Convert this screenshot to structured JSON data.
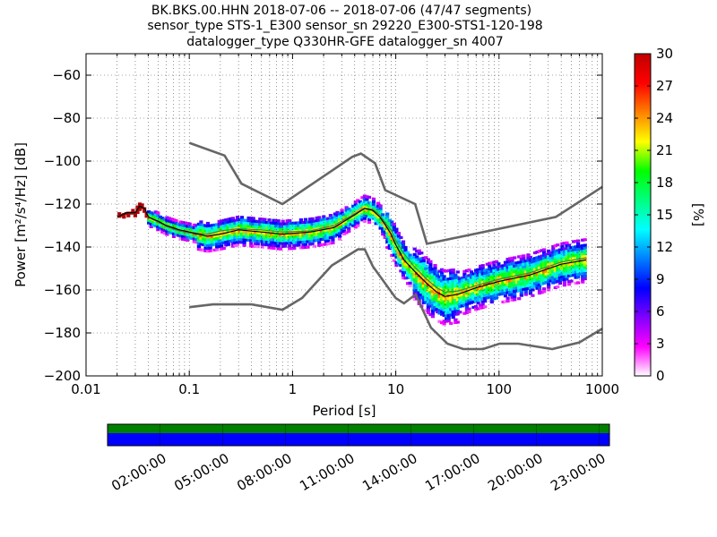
{
  "chart_data": {
    "type": "heatmap",
    "title_lines": [
      "BK.BKS.00.HHN   2018-07-06 -- 2018-07-06  (47/47 segments)",
      "sensor_type STS-1_E300 sensor_sn 29220_E300-STS1-120-198",
      "datalogger_type Q330HR-GFE datalogger_sn 4007"
    ],
    "xlabel": "Period [s]",
    "ylabel": "Power [m²/s⁴/Hz] [dB]",
    "x_scale": "log",
    "xlim": [
      0.01,
      1000
    ],
    "ylim": [
      -200,
      -50
    ],
    "x_ticks": [
      {
        "value": 0.01,
        "label": "0.01"
      },
      {
        "value": 0.1,
        "label": "0.1"
      },
      {
        "value": 1,
        "label": "1"
      },
      {
        "value": 10,
        "label": "10"
      },
      {
        "value": 100,
        "label": "100"
      },
      {
        "value": 1000,
        "label": "1000"
      }
    ],
    "y_ticks": [
      {
        "value": -60,
        "label": "−60"
      },
      {
        "value": -80,
        "label": "−80"
      },
      {
        "value": -100,
        "label": "−100"
      },
      {
        "value": -120,
        "label": "−120"
      },
      {
        "value": -140,
        "label": "−140"
      },
      {
        "value": -160,
        "label": "−160"
      },
      {
        "value": -180,
        "label": "−180"
      },
      {
        "value": -200,
        "label": "−200"
      }
    ],
    "grid": true,
    "colorbar": {
      "label": "[%]",
      "range": [
        0,
        30
      ],
      "ticks": [
        {
          "value": 0,
          "label": "0"
        },
        {
          "value": 3,
          "label": "3"
        },
        {
          "value": 6,
          "label": "6"
        },
        {
          "value": 9,
          "label": "9"
        },
        {
          "value": 12,
          "label": "12"
        },
        {
          "value": 15,
          "label": "15"
        },
        {
          "value": 18,
          "label": "18"
        },
        {
          "value": 21,
          "label": "21"
        },
        {
          "value": 24,
          "label": "24"
        },
        {
          "value": 27,
          "label": "27"
        },
        {
          "value": 30,
          "label": "30"
        }
      ],
      "colors": [
        "#ffffff",
        "#ff00ff",
        "#8000ff",
        "#0000ff",
        "#0080ff",
        "#00ffff",
        "#00ff80",
        "#00ff00",
        "#ffff00",
        "#ff8000",
        "#ff0000",
        "#c00000"
      ]
    },
    "noise_model_high": [
      [
        0.1,
        -91.5
      ],
      [
        0.22,
        -97.4
      ],
      [
        0.32,
        -110.5
      ],
      [
        0.8,
        -120
      ],
      [
        3.8,
        -98
      ],
      [
        4.6,
        -96.5
      ],
      [
        6.3,
        -101
      ],
      [
        7.9,
        -113.5
      ],
      [
        15.4,
        -120
      ],
      [
        20,
        -138.5
      ],
      [
        354.8,
        -126
      ],
      [
        1000,
        -112
      ]
    ],
    "noise_model_low": [
      [
        0.1,
        -168
      ],
      [
        0.17,
        -166.7
      ],
      [
        0.4,
        -166.7
      ],
      [
        0.8,
        -169.2
      ],
      [
        1.24,
        -163.7
      ],
      [
        2.4,
        -148.6
      ],
      [
        4.3,
        -141.1
      ],
      [
        5,
        -141.1
      ],
      [
        6,
        -149
      ],
      [
        10,
        -163.8
      ],
      [
        12,
        -166.2
      ],
      [
        15.6,
        -162.1
      ],
      [
        21.9,
        -177.5
      ],
      [
        31.6,
        -185
      ],
      [
        45,
        -187.5
      ],
      [
        70,
        -187.5
      ],
      [
        101,
        -185
      ],
      [
        154,
        -185
      ],
      [
        328,
        -187.5
      ],
      [
        600,
        -184.4
      ],
      [
        1000,
        -178
      ]
    ],
    "mode_curve": [
      [
        0.02,
        -126
      ],
      [
        0.025,
        -124
      ],
      [
        0.03,
        -124
      ],
      [
        0.033,
        -121
      ],
      [
        0.037,
        -122
      ],
      [
        0.04,
        -126
      ],
      [
        0.05,
        -128
      ],
      [
        0.06,
        -130
      ],
      [
        0.08,
        -132
      ],
      [
        0.1,
        -133
      ],
      [
        0.15,
        -135
      ],
      [
        0.2,
        -134
      ],
      [
        0.3,
        -132
      ],
      [
        0.5,
        -133
      ],
      [
        0.8,
        -134
      ],
      [
        1.5,
        -133
      ],
      [
        2.5,
        -131
      ],
      [
        4,
        -125
      ],
      [
        5,
        -122
      ],
      [
        6,
        -123
      ],
      [
        7,
        -126
      ],
      [
        8,
        -130
      ],
      [
        9,
        -134
      ],
      [
        10,
        -139
      ],
      [
        12,
        -146
      ],
      [
        15,
        -151
      ],
      [
        20,
        -157
      ],
      [
        25,
        -161
      ],
      [
        30,
        -163
      ],
      [
        40,
        -162
      ],
      [
        60,
        -159
      ],
      [
        100,
        -156
      ],
      [
        200,
        -153
      ],
      [
        400,
        -148
      ],
      [
        700,
        -146
      ]
    ],
    "mean_curve": [
      [
        0.02,
        -126
      ],
      [
        0.025,
        -124
      ],
      [
        0.03,
        -124
      ],
      [
        0.033,
        -121
      ],
      [
        0.037,
        -122
      ],
      [
        0.04,
        -126
      ],
      [
        0.05,
        -128.5
      ],
      [
        0.06,
        -130.5
      ],
      [
        0.08,
        -132.5
      ],
      [
        0.1,
        -133.5
      ],
      [
        0.15,
        -134
      ],
      [
        0.2,
        -132.5
      ],
      [
        0.3,
        -131.5
      ],
      [
        0.5,
        -132
      ],
      [
        0.8,
        -133
      ],
      [
        1.5,
        -132.5
      ],
      [
        2.5,
        -130
      ],
      [
        4,
        -124.5
      ],
      [
        5,
        -122
      ],
      [
        6,
        -122.5
      ],
      [
        7,
        -125
      ],
      [
        8,
        -129
      ],
      [
        9,
        -132
      ],
      [
        10,
        -137
      ],
      [
        12,
        -143
      ],
      [
        15,
        -149
      ],
      [
        20,
        -155
      ],
      [
        25,
        -159
      ],
      [
        30,
        -161
      ],
      [
        40,
        -160.5
      ],
      [
        60,
        -158
      ],
      [
        100,
        -155
      ],
      [
        200,
        -152
      ],
      [
        400,
        -147
      ],
      [
        700,
        -145
      ]
    ],
    "timeline": {
      "tick_labels": [
        "02:00:00",
        "05:00:00",
        "08:00:00",
        "11:00:00",
        "14:00:00",
        "17:00:00",
        "20:00:00",
        "23:00:00"
      ],
      "top_color": "#008000",
      "bottom_color": "#0000ff"
    }
  }
}
